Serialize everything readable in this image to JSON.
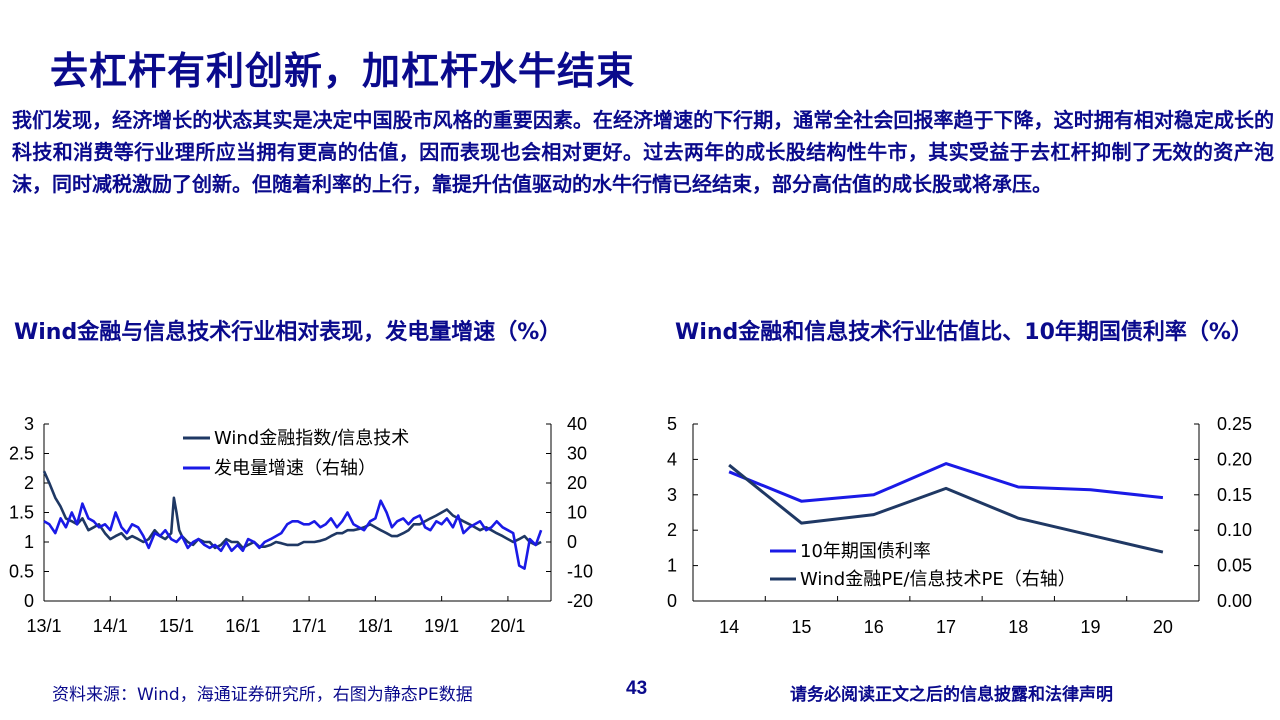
{
  "title": "去杠杆有利创新，加杠杆水牛结束",
  "body_text": "我们发现，经济增长的状态其实是决定中国股市风格的重要因素。在经济增速的下行期，通常全社会回报率趋于下降，这时拥有相对稳定成长的科技和消费等行业理所应当拥有更高的估值，因而表现也会相对更好。过去两年的成长股结构性牛市，其实受益于去杠杆抑制了无效的资产泡沫，同时减税激励了创新。但随着利率的上行，靠提升估值驱动的水牛行情已经结束，部分高估值的成长股或将承压。",
  "footer": {
    "source": "资料来源：Wind，海通证券研究所，右图为静态PE数据",
    "page": "43",
    "legal": "请务必阅读正文之后的信息披露和法律声明"
  },
  "colors": {
    "dark_navy": "#1f3864",
    "blue": "#1a1ae6",
    "text": "#0a0a8c"
  },
  "chart_data": [
    {
      "type": "line",
      "title": "Wind金融与信息技术行业相对表现，发电量增速（%）",
      "x_ticks": [
        "13/1",
        "14/1",
        "15/1",
        "16/1",
        "17/1",
        "18/1",
        "19/1",
        "20/1"
      ],
      "x_range": [
        2013.0,
        2020.65
      ],
      "ylim_left": [
        0,
        3
      ],
      "yticks_left": [
        "0",
        "0.5",
        "1",
        "1.5",
        "2",
        "2.5",
        "3"
      ],
      "ylim_right": [
        -20,
        40
      ],
      "yticks_right": [
        "-20",
        "-10",
        "0",
        "10",
        "20",
        "30",
        "40"
      ],
      "legend_position": "top-center",
      "series": [
        {
          "name": "Wind金融指数/信息技术",
          "axis": "left",
          "color": "#1f3864",
          "x": [
            2013.0,
            2013.08,
            2013.17,
            2013.25,
            2013.33,
            2013.42,
            2013.5,
            2013.58,
            2013.67,
            2013.75,
            2013.83,
            2013.92,
            2014.0,
            2014.08,
            2014.17,
            2014.25,
            2014.33,
            2014.42,
            2014.5,
            2014.58,
            2014.67,
            2014.75,
            2014.83,
            2014.92,
            2014.96,
            2015.0,
            2015.04,
            2015.08,
            2015.17,
            2015.25,
            2015.33,
            2015.42,
            2015.5,
            2015.58,
            2015.67,
            2015.75,
            2015.83,
            2015.92,
            2016.0,
            2016.08,
            2016.17,
            2016.25,
            2016.33,
            2016.42,
            2016.5,
            2016.58,
            2016.67,
            2016.75,
            2016.83,
            2016.92,
            2017.0,
            2017.08,
            2017.17,
            2017.25,
            2017.33,
            2017.42,
            2017.5,
            2017.58,
            2017.67,
            2017.75,
            2017.83,
            2017.92,
            2018.0,
            2018.08,
            2018.17,
            2018.25,
            2018.33,
            2018.42,
            2018.5,
            2018.58,
            2018.67,
            2018.75,
            2018.83,
            2018.92,
            2019.0,
            2019.08,
            2019.17,
            2019.25,
            2019.33,
            2019.42,
            2019.5,
            2019.58,
            2019.67,
            2019.75,
            2019.83,
            2019.92,
            2020.0,
            2020.08,
            2020.17,
            2020.25,
            2020.33,
            2020.42,
            2020.5
          ],
          "values": [
            2.2,
            2.0,
            1.75,
            1.6,
            1.4,
            1.35,
            1.3,
            1.4,
            1.2,
            1.25,
            1.3,
            1.15,
            1.05,
            1.1,
            1.15,
            1.05,
            1.1,
            1.05,
            1.0,
            1.05,
            1.2,
            1.1,
            1.05,
            1.15,
            1.75,
            1.5,
            1.2,
            1.1,
            1.0,
            0.95,
            1.05,
            1.0,
            1.0,
            0.9,
            0.95,
            1.05,
            1.0,
            1.0,
            0.9,
            0.95,
            1.0,
            0.92,
            0.92,
            0.95,
            1.0,
            0.98,
            0.95,
            0.95,
            0.95,
            1.0,
            1.0,
            1.0,
            1.02,
            1.05,
            1.1,
            1.15,
            1.15,
            1.2,
            1.2,
            1.22,
            1.25,
            1.3,
            1.25,
            1.2,
            1.15,
            1.1,
            1.1,
            1.15,
            1.2,
            1.3,
            1.3,
            1.35,
            1.4,
            1.45,
            1.5,
            1.55,
            1.45,
            1.4,
            1.35,
            1.3,
            1.25,
            1.2,
            1.25,
            1.2,
            1.15,
            1.1,
            1.05,
            1.0,
            1.05,
            1.1,
            1.0,
            0.95,
            1.0
          ]
        },
        {
          "name": "发电量增速（右轴）",
          "axis": "right",
          "color": "#1a1ae6",
          "x": [
            2013.0,
            2013.08,
            2013.17,
            2013.25,
            2013.33,
            2013.42,
            2013.5,
            2013.58,
            2013.67,
            2013.75,
            2013.83,
            2013.92,
            2014.0,
            2014.08,
            2014.17,
            2014.25,
            2014.33,
            2014.42,
            2014.5,
            2014.58,
            2014.67,
            2014.75,
            2014.83,
            2014.92,
            2015.0,
            2015.08,
            2015.17,
            2015.25,
            2015.33,
            2015.42,
            2015.5,
            2015.58,
            2015.67,
            2015.75,
            2015.83,
            2015.92,
            2016.0,
            2016.08,
            2016.17,
            2016.25,
            2016.33,
            2016.42,
            2016.5,
            2016.58,
            2016.67,
            2016.75,
            2016.83,
            2016.92,
            2017.0,
            2017.08,
            2017.17,
            2017.25,
            2017.33,
            2017.42,
            2017.5,
            2017.58,
            2017.67,
            2017.75,
            2017.83,
            2017.92,
            2018.0,
            2018.08,
            2018.17,
            2018.25,
            2018.33,
            2018.42,
            2018.5,
            2018.58,
            2018.67,
            2018.75,
            2018.83,
            2018.92,
            2019.0,
            2019.08,
            2019.17,
            2019.25,
            2019.33,
            2019.42,
            2019.5,
            2019.58,
            2019.67,
            2019.75,
            2019.83,
            2019.92,
            2020.0,
            2020.08,
            2020.17,
            2020.25,
            2020.33,
            2020.42,
            2020.5
          ],
          "values": [
            7,
            6,
            3,
            8,
            5,
            10,
            6,
            13,
            8,
            7,
            5,
            6,
            4,
            10,
            5,
            3,
            6,
            5,
            2,
            -2,
            3,
            2,
            4,
            1,
            0,
            2,
            -2,
            0,
            1,
            -1,
            -2,
            -1,
            -3,
            0,
            -3,
            -1,
            -3,
            1,
            0,
            -2,
            0,
            1,
            2,
            3,
            6,
            7,
            7,
            6,
            6,
            7,
            5,
            6,
            8,
            5,
            7,
            10,
            6,
            5,
            4,
            7,
            8,
            14,
            10,
            5,
            7,
            8,
            6,
            8,
            9,
            5,
            4,
            7,
            6,
            8,
            5,
            9,
            3,
            5,
            6,
            7,
            4,
            5,
            7,
            5,
            4,
            3,
            -8,
            -9,
            1,
            -1,
            4
          ]
        }
      ]
    },
    {
      "type": "line",
      "title": "Wind金融和信息技术行业估值比、10年期国债利率（%）",
      "categories": [
        "14",
        "15",
        "16",
        "17",
        "18",
        "19",
        "20"
      ],
      "ylim_left": [
        0,
        5
      ],
      "yticks_left": [
        "0",
        "1",
        "2",
        "3",
        "4",
        "5"
      ],
      "ylim_right": [
        0,
        0.25
      ],
      "yticks_right": [
        "0.00",
        "0.05",
        "0.10",
        "0.15",
        "0.20",
        "0.25"
      ],
      "legend_position": "bottom-left",
      "series": [
        {
          "name": "10年期国债利率",
          "axis": "left",
          "color": "#1a1ae6",
          "values": [
            3.65,
            2.82,
            3.0,
            3.88,
            3.22,
            3.14,
            2.92
          ]
        },
        {
          "name": "Wind金融PE/信息技术PE（右轴）",
          "axis": "right",
          "color": "#1f3864",
          "values": [
            0.192,
            0.11,
            0.122,
            0.159,
            0.117,
            0.093,
            0.069
          ]
        }
      ]
    }
  ]
}
